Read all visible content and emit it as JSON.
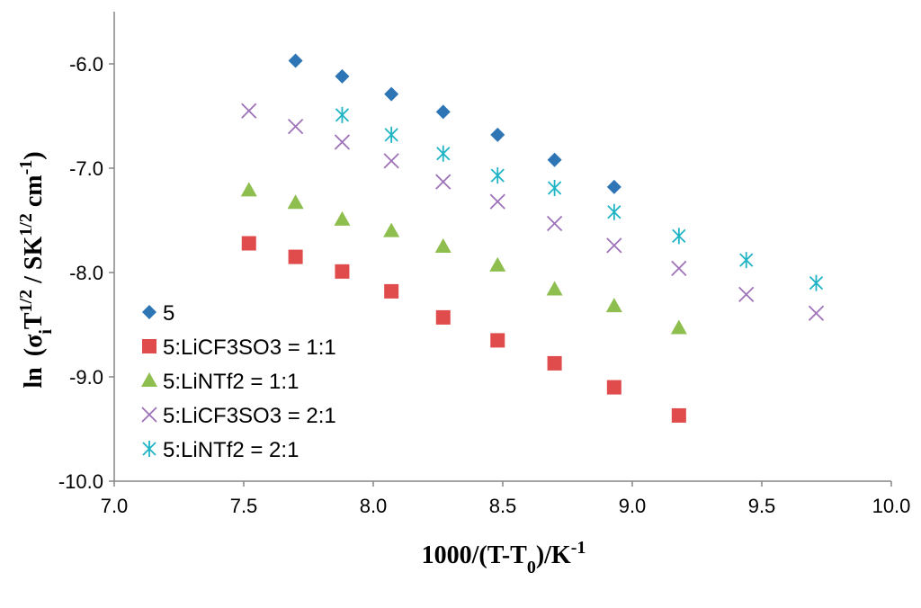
{
  "chart_data": {
    "type": "scatter",
    "title": "",
    "xlabel": {
      "main": "1000/(T-T",
      "sub": "0",
      "tail": ")/K",
      "sup": "-1"
    },
    "ylabel": {
      "ln": "ln",
      "open": "(σ",
      "sub_i": "i",
      "t": "T",
      "sup_half": "1/2",
      "slash": " / SK",
      "sup_half2": "1/2",
      "cm": " cm",
      "sup_m1": "-1",
      "close": ")"
    },
    "xlim": [
      7.0,
      10.0
    ],
    "ylim": [
      -10.0,
      -5.5
    ],
    "xticks": [
      7.0,
      7.5,
      8.0,
      8.5,
      9.0,
      9.5,
      10.0
    ],
    "xtick_labels": [
      "7.0",
      "7.5",
      "8.0",
      "8.5",
      "9.0",
      "9.5",
      "10.0"
    ],
    "yticks": [
      -6.0,
      -7.0,
      -8.0,
      -9.0,
      -10.0
    ],
    "ytick_labels": [
      "-6.0",
      "-7.0",
      "-8.0",
      "-9.0",
      "-10.0"
    ],
    "grid": false,
    "legend_position": "bottom-left",
    "series": [
      {
        "name": "5",
        "marker": "diamond",
        "color": "#2E75B6",
        "x": [
          7.7,
          7.88,
          8.07,
          8.27,
          8.48,
          8.7,
          8.93
        ],
        "y": [
          -5.97,
          -6.12,
          -6.29,
          -6.46,
          -6.68,
          -6.92,
          -7.18
        ]
      },
      {
        "name": "5:LiCF3SO3 = 1:1",
        "marker": "square",
        "color": "#E04B4B",
        "x": [
          7.52,
          7.7,
          7.88,
          8.07,
          8.27,
          8.48,
          8.7,
          8.93,
          9.18
        ],
        "y": [
          -7.72,
          -7.85,
          -7.99,
          -8.18,
          -8.43,
          -8.65,
          -8.87,
          -9.1,
          -9.37
        ]
      },
      {
        "name": "5:LiNTf2 = 1:1",
        "marker": "triangle",
        "color": "#8DBE4E",
        "x": [
          7.52,
          7.7,
          7.88,
          8.07,
          8.27,
          8.48,
          8.7,
          8.93,
          9.18
        ],
        "y": [
          -7.21,
          -7.33,
          -7.49,
          -7.6,
          -7.75,
          -7.93,
          -8.16,
          -8.32,
          -8.53
        ]
      },
      {
        "name": "5:LiCF3SO3 = 2:1",
        "marker": "x",
        "color": "#9E72B8",
        "x": [
          7.52,
          7.7,
          7.88,
          8.07,
          8.27,
          8.48,
          8.7,
          8.93,
          9.18,
          9.44,
          9.71
        ],
        "y": [
          -6.45,
          -6.6,
          -6.75,
          -6.93,
          -7.13,
          -7.32,
          -7.53,
          -7.74,
          -7.96,
          -8.21,
          -8.39
        ]
      },
      {
        "name": "5:LiNTf2 = 2:1",
        "marker": "asterisk",
        "color": "#1FB4C4",
        "x": [
          7.88,
          8.07,
          8.27,
          8.48,
          8.7,
          8.93,
          9.18,
          9.44,
          9.71
        ],
        "y": [
          -6.49,
          -6.68,
          -6.86,
          -7.07,
          -7.19,
          -7.42,
          -7.65,
          -7.88,
          -8.1
        ]
      }
    ]
  }
}
